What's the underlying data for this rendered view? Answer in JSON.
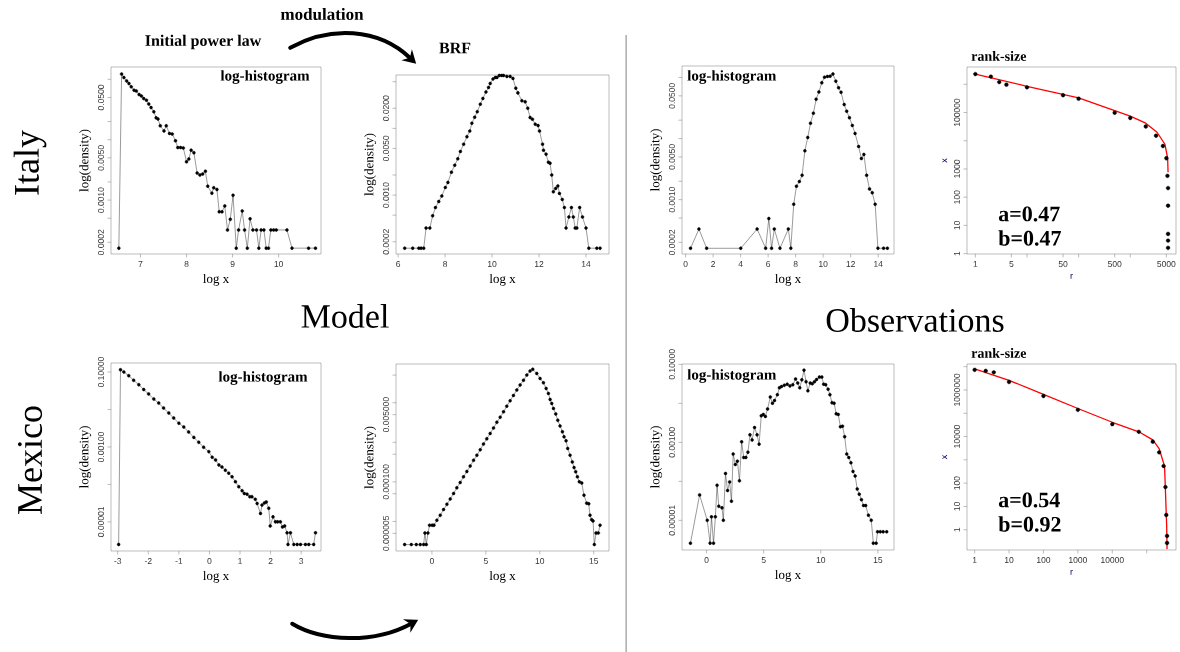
{
  "chart_data": [
    {
      "type": "line",
      "title": "Initial power law",
      "xlabel": "log x",
      "ylabel": "log(density)",
      "annotations": [
        "log-histogram",
        "modulation",
        "Italy",
        "Model"
      ],
      "color": "#000000",
      "marker": "circle",
      "log": "y",
      "xlim": [
        6.36,
        10.92
      ],
      "ylim": [
        0.000128,
        0.16
      ],
      "xticks": [
        7,
        8,
        9,
        10
      ],
      "yticks": [
        {
          "value": 0.0002,
          "label": "0.0002"
        },
        {
          "value": 0.0005,
          "label": null
        },
        {
          "value": 0.001,
          "label": "0.0010"
        },
        {
          "value": 0.002,
          "label": null
        },
        {
          "value": 0.005,
          "label": "0.0050"
        },
        {
          "value": 0.01,
          "label": null
        },
        {
          "value": 0.02,
          "label": null
        },
        {
          "value": 0.05,
          "label": "0.0500"
        },
        {
          "value": 0.1,
          "label": null
        }
      ],
      "x": [
        6.53,
        6.59,
        6.64,
        6.7,
        6.75,
        6.8,
        6.86,
        6.91,
        6.97,
        7.02,
        7.07,
        7.13,
        7.18,
        7.23,
        7.29,
        7.34,
        7.38,
        7.43,
        7.51,
        7.56,
        7.63,
        7.69,
        7.76,
        7.81,
        7.87,
        7.93,
        8.0,
        8.05,
        8.1,
        8.16,
        8.23,
        8.29,
        8.35,
        8.41,
        8.46,
        8.55,
        8.59,
        8.66,
        8.71,
        8.77,
        8.83,
        8.89,
        8.95,
        9.01,
        9.08,
        9.13,
        9.21,
        9.26,
        9.32,
        9.38,
        9.44,
        9.52,
        9.57,
        9.62,
        9.68,
        9.73,
        9.78,
        9.83,
        9.89,
        9.95,
        10.18,
        10.29,
        10.65,
        10.8
      ],
      "values": [
        0.00016,
        0.122,
        0.107,
        0.094,
        0.085,
        0.075,
        0.066,
        0.064,
        0.056,
        0.053,
        0.048,
        0.045,
        0.039,
        0.034,
        0.029,
        0.023,
        0.022,
        0.017,
        0.014,
        0.017,
        0.0127,
        0.0124,
        0.0096,
        0.0074,
        0.0074,
        0.0073,
        0.0043,
        0.0048,
        0.0067,
        0.0061,
        0.0028,
        0.0026,
        0.0027,
        0.003,
        0.0017,
        0.0013,
        0.0016,
        0.0015,
        0.00064,
        0.00064,
        0.0008,
        0.00032,
        0.00048,
        0.0012,
        0.00016,
        0.00032,
        0.00066,
        0.00032,
        0.00016,
        0.00049,
        0.00032,
        0.00032,
        0.00016,
        0.00032,
        0.00032,
        0.00016,
        0.00016,
        0.00032,
        0.00032,
        0.00032,
        0.00032,
        0.00016,
        0.00016,
        0.00016
      ]
    },
    {
      "type": "line",
      "title": "BRF",
      "xlabel": "log x",
      "ylabel": "log(density)",
      "color": "#000000",
      "marker": "circle",
      "log": "y",
      "xlim": [
        5.91,
        14.98
      ],
      "ylim": [
        0.000131,
        0.063
      ],
      "xticks": [
        6,
        8,
        10,
        12,
        14
      ],
      "yticks": [
        {
          "value": 0.0002,
          "label": "0.0002"
        },
        {
          "value": 0.0005,
          "label": null
        },
        {
          "value": 0.001,
          "label": "0.0010"
        },
        {
          "value": 0.002,
          "label": null
        },
        {
          "value": 0.005,
          "label": "0.0050"
        },
        {
          "value": 0.01,
          "label": null
        },
        {
          "value": 0.02,
          "label": "0.0200"
        },
        {
          "value": 0.05,
          "label": null
        }
      ],
      "x": [
        6.28,
        6.62,
        6.88,
        6.98,
        7.09,
        7.19,
        7.35,
        7.47,
        7.59,
        7.73,
        7.86,
        8.01,
        8.12,
        8.27,
        8.41,
        8.54,
        8.65,
        8.79,
        8.93,
        9.05,
        9.14,
        9.26,
        9.37,
        9.5,
        9.61,
        9.74,
        9.85,
        9.92,
        10.04,
        10.14,
        10.21,
        10.31,
        10.41,
        10.49,
        10.63,
        10.77,
        10.89,
        11.01,
        11.1,
        11.27,
        11.41,
        11.52,
        11.62,
        11.72,
        11.84,
        11.96,
        12.02,
        12.15,
        12.19,
        12.3,
        12.4,
        12.47,
        12.54,
        12.61,
        12.71,
        12.8,
        12.87,
        12.99,
        13.08,
        13.15,
        13.27,
        13.38,
        13.46,
        13.54,
        13.61,
        13.73,
        13.85,
        14.0,
        14.12,
        14.46,
        14.6
      ],
      "values": [
        0.00016,
        0.00016,
        0.00016,
        0.00016,
        0.00016,
        0.00032,
        0.00032,
        0.00049,
        0.00065,
        0.0008,
        0.00097,
        0.0013,
        0.00155,
        0.0022,
        0.0028,
        0.0035,
        0.0045,
        0.0058,
        0.0075,
        0.0091,
        0.0119,
        0.0147,
        0.0178,
        0.023,
        0.028,
        0.035,
        0.041,
        0.047,
        0.055,
        0.058,
        0.058,
        0.062,
        0.062,
        0.062,
        0.06,
        0.06,
        0.056,
        0.04,
        0.034,
        0.026,
        0.025,
        0.02,
        0.0145,
        0.0137,
        0.0115,
        0.011,
        0.0091,
        0.0058,
        0.0047,
        0.0041,
        0.0031,
        0.003,
        0.002,
        0.00112,
        0.00126,
        0.00137,
        0.00106,
        0.00086,
        0.00065,
        0.00032,
        0.00047,
        0.00065,
        0.00047,
        0.00032,
        0.00032,
        0.00065,
        0.00047,
        0.00032,
        0.00016,
        0.00016,
        0.00016
      ]
    },
    {
      "type": "line",
      "xlabel": "log x",
      "ylabel": "log(density)",
      "annotations": [
        "log-histogram",
        "Observations"
      ],
      "color": "#000000",
      "marker": "circle",
      "log": "y",
      "xlim": [
        -0.26,
        15.15
      ],
      "ylim": [
        0.000129,
        0.154
      ],
      "xticks": [
        0,
        2,
        4,
        6,
        8,
        10,
        12,
        14
      ],
      "yticks": [
        {
          "value": 0.0002,
          "label": "0.0002"
        },
        {
          "value": 0.0005,
          "label": null
        },
        {
          "value": 0.001,
          "label": "0.0010"
        },
        {
          "value": 0.002,
          "label": null
        },
        {
          "value": 0.005,
          "label": "0.0050"
        },
        {
          "value": 0.01,
          "label": null
        },
        {
          "value": 0.02,
          "label": null
        },
        {
          "value": 0.05,
          "label": "0.0500"
        },
        {
          "value": 0.1,
          "label": null
        }
      ],
      "x": [
        0.36,
        0.97,
        1.53,
        4.01,
        5.2,
        5.82,
        6.05,
        6.25,
        6.45,
        6.86,
        7.47,
        7.65,
        7.86,
        8.06,
        8.27,
        8.47,
        8.67,
        8.88,
        9.08,
        9.29,
        9.49,
        9.69,
        9.9,
        10.1,
        10.31,
        10.51,
        10.71,
        10.92,
        11.12,
        11.3,
        11.53,
        11.71,
        11.91,
        12.12,
        12.32,
        12.58,
        12.78,
        12.96,
        13.16,
        13.37,
        13.57,
        13.78,
        13.98,
        14.39,
        14.67
      ],
      "values": [
        0.00016,
        0.00033,
        0.00016,
        0.00016,
        0.00033,
        0.00016,
        0.00049,
        0.00016,
        0.00033,
        0.00016,
        0.00033,
        0.00016,
        0.00084,
        0.00166,
        0.00198,
        0.0025,
        0.0063,
        0.0104,
        0.0178,
        0.026,
        0.044,
        0.058,
        0.082,
        0.101,
        0.104,
        0.105,
        0.114,
        0.087,
        0.068,
        0.057,
        0.036,
        0.028,
        0.022,
        0.0164,
        0.0121,
        0.0074,
        0.0047,
        0.0055,
        0.0025,
        0.0015,
        0.0013,
        0.00084,
        0.00016,
        0.00016,
        0.00016
      ]
    },
    {
      "type": "scatter",
      "title": "rank-size",
      "xlabel": "r",
      "ylabel": "x",
      "annotations": [
        "a=0.47",
        "b=0.47"
      ],
      "marker": "circle",
      "log": "xy",
      "xlim": [
        0.69,
        7700
      ],
      "ylim": [
        0.97,
        4100000
      ],
      "xticks": [
        1,
        5,
        {
          "value": 10,
          "label": null
        },
        50,
        {
          "value": 100,
          "label": null
        },
        500,
        {
          "value": 1000,
          "label": null
        },
        5000
      ],
      "yticks": [
        1,
        10,
        100,
        1000,
        {
          "value": 10000,
          "label": null
        },
        100000,
        {
          "value": 1000000,
          "label": null
        }
      ],
      "series": [
        {
          "type": "scatter",
          "color": "#000000",
          "x": [
            1,
            2,
            2.9,
            4,
            10,
            50,
            100,
            500,
            1000,
            2000,
            3160,
            4300,
            5010,
            5250,
            5400,
            5400,
            5400,
            5400,
            5400
          ],
          "values": [
            2300000,
            1870000,
            1200000,
            970000,
            780000,
            410000,
            310000,
            98000,
            64000,
            32000,
            15000,
            6500,
            2400,
            570,
            210,
            50,
            5,
            2.9,
            1.6
          ]
        },
        {
          "type": "line",
          "color": "#ff0000",
          "marker": "none",
          "x": [
            1,
            10,
            100,
            1000,
            2000,
            3300,
            4700,
            5300,
            5400
          ],
          "values": [
            2300000,
            850000,
            330000,
            74000,
            42000,
            20000,
            7500,
            2400,
            760
          ]
        }
      ]
    },
    {
      "type": "line",
      "xlabel": "log x",
      "ylabel": "log(density)",
      "annotations": [
        "log-histogram",
        "Mexico"
      ],
      "color": "#000000",
      "marker": "circle",
      "log": "y",
      "xlim": [
        -3.22,
        3.65
      ],
      "ylim": [
        1.67e-06,
        0.174
      ],
      "xticks": [
        -3,
        -2,
        -1,
        0,
        1,
        2,
        3
      ],
      "yticks": [
        {
          "value": 1e-05,
          "label": "0.00001"
        },
        {
          "value": 0.0001,
          "label": null
        },
        {
          "value": 0.001,
          "label": "0.00100"
        },
        {
          "value": 0.01,
          "label": null
        },
        {
          "value": 0.1,
          "label": "0.10000"
        }
      ],
      "x": [
        -2.97,
        -2.91,
        -2.8,
        -2.64,
        -2.48,
        -2.31,
        -2.15,
        -1.99,
        -1.82,
        -1.66,
        -1.5,
        -1.33,
        -1.17,
        -1.0,
        -0.84,
        -0.68,
        -0.51,
        -0.35,
        -0.19,
        -0.02,
        0.09,
        0.2,
        0.31,
        0.41,
        0.52,
        0.63,
        0.74,
        0.85,
        0.96,
        1.07,
        1.14,
        1.23,
        1.32,
        1.39,
        1.5,
        1.56,
        1.67,
        1.72,
        1.8,
        1.86,
        1.94,
        1.99,
        2.08,
        2.16,
        2.23,
        2.32,
        2.39,
        2.46,
        2.54,
        2.57,
        2.65,
        2.76,
        2.87,
        2.98,
        3.14,
        3.25,
        3.41,
        3.47
      ],
      "values": [
        2.5e-06,
        0.115,
        0.1,
        0.08,
        0.06,
        0.046,
        0.034,
        0.026,
        0.0189,
        0.0148,
        0.0109,
        0.008,
        0.0059,
        0.0043,
        0.0034,
        0.0025,
        0.0018,
        0.00133,
        0.00098,
        0.00075,
        0.00053,
        0.00045,
        0.00033,
        0.00029,
        0.00024,
        0.0002,
        0.00016,
        0.000118,
        8.7e-05,
        6.8e-05,
        5.7e-05,
        5.5e-05,
        4.7e-05,
        4.7e-05,
        4e-05,
        3.1e-05,
        1.67e-05,
        2.8e-05,
        3.2e-05,
        3.4e-05,
        2.3e-05,
        7.8e-06,
        1.36e-05,
        1e-05,
        1e-05,
        1e-05,
        7.3e-06,
        7.8e-06,
        5.1e-06,
        2.5e-06,
        5.1e-06,
        2.5e-06,
        2.5e-06,
        2.5e-06,
        2.5e-06,
        2.5e-06,
        2.5e-06,
        5.1e-06
      ]
    },
    {
      "type": "line",
      "xlabel": "log x",
      "ylabel": "log(density)",
      "color": "#000000",
      "marker": "circle",
      "log": "y",
      "xlim": [
        -3.33,
        16.42
      ],
      "ylim": [
        1.79e-06,
        0.0953
      ],
      "xticks": [
        0,
        5,
        10,
        15
      ],
      "yticks": [
        {
          "value": 5e-06,
          "label": "0.000005"
        },
        {
          "value": 1e-05,
          "label": null
        },
        {
          "value": 5e-05,
          "label": null
        },
        {
          "value": 0.0001,
          "label": "0.000100"
        },
        {
          "value": 0.0005,
          "label": null
        },
        {
          "value": 0.001,
          "label": null
        },
        {
          "value": 0.005,
          "label": "0.005000"
        },
        {
          "value": 0.01,
          "label": null
        },
        {
          "value": 0.05,
          "label": null
        }
      ],
      "x": [
        -2.53,
        -1.91,
        -1.45,
        -1.08,
        -0.77,
        -0.65,
        -0.52,
        -0.37,
        -0.22,
        0.03,
        0.19,
        0.46,
        0.77,
        1.08,
        1.39,
        1.7,
        2.01,
        2.31,
        2.62,
        2.93,
        3.24,
        3.55,
        3.86,
        4.17,
        4.48,
        4.78,
        5.09,
        5.4,
        5.71,
        6.02,
        6.33,
        6.64,
        6.94,
        7.25,
        7.56,
        7.87,
        8.18,
        8.49,
        8.8,
        9.1,
        9.35,
        9.72,
        10.03,
        10.34,
        10.59,
        10.8,
        10.96,
        11.11,
        11.27,
        11.48,
        11.67,
        11.88,
        12.1,
        12.25,
        12.44,
        12.59,
        12.81,
        13.02,
        13.18,
        13.33,
        13.49,
        13.67,
        13.89,
        14.1,
        14.35,
        14.54,
        14.66,
        14.81,
        14.94,
        15.06,
        15.22,
        15.43,
        15.59
      ],
      "values": [
        2.6e-06,
        2.6e-06,
        2.6e-06,
        2.6e-06,
        2.6e-06,
        5.1e-06,
        2.6e-06,
        5.1e-06,
        8e-06,
        8e-06,
        8e-06,
        1.07e-05,
        1.43e-05,
        2e-05,
        2.7e-05,
        3.7e-05,
        5.1e-05,
        7.1e-05,
        9.6e-05,
        0.000134,
        0.000183,
        0.00025,
        0.00035,
        0.00047,
        0.00065,
        0.0009,
        0.00123,
        0.00167,
        0.0023,
        0.0032,
        0.0043,
        0.0059,
        0.0082,
        0.0112,
        0.0153,
        0.021,
        0.028,
        0.037,
        0.05,
        0.063,
        0.07,
        0.055,
        0.041,
        0.032,
        0.023,
        0.0172,
        0.0121,
        0.0096,
        0.0072,
        0.0052,
        0.0036,
        0.0026,
        0.00185,
        0.00138,
        0.00109,
        0.0007,
        0.00047,
        0.00032,
        0.00023,
        0.00018,
        0.000134,
        0.0001,
        9.4e-05,
        4.6e-05,
        2.9e-05,
        2.8e-05,
        1.43e-05,
        1.11e-05,
        1.03e-05,
        2.6e-06,
        5.1e-06,
        5.1e-06,
        8e-06
      ]
    },
    {
      "type": "line",
      "xlabel": "log x",
      "ylabel": "log(density)",
      "annotations": [
        "log-histogram"
      ],
      "color": "#000000",
      "marker": "circle",
      "log": "y",
      "xlim": [
        -2.15,
        16.41
      ],
      "ylim": [
        1.74e-06,
        0.102
      ],
      "xticks": [
        0,
        5,
        10,
        15
      ],
      "yticks": [
        {
          "value": 1e-05,
          "label": "0.00001"
        },
        {
          "value": 0.0001,
          "label": null
        },
        {
          "value": 0.001,
          "label": "0.00100"
        },
        {
          "value": 0.01,
          "label": null
        },
        {
          "value": 0.1,
          "label": "0.10000"
        }
      ],
      "x": [
        -1.41,
        -0.61,
        0.06,
        0.31,
        0.43,
        0.61,
        0.77,
        0.92,
        1.07,
        1.35,
        1.47,
        1.66,
        1.84,
        2.02,
        2.18,
        2.33,
        2.52,
        2.7,
        2.88,
        3.07,
        3.25,
        3.44,
        3.62,
        3.8,
        3.99,
        4.2,
        4.42,
        4.6,
        4.79,
        4.97,
        5.15,
        5.34,
        5.58,
        5.77,
        5.95,
        6.2,
        6.38,
        6.56,
        6.81,
        7.06,
        7.3,
        7.55,
        7.79,
        7.98,
        8.16,
        8.34,
        8.53,
        8.71,
        8.87,
        9.08,
        9.26,
        9.45,
        9.63,
        9.88,
        10.09,
        10.25,
        10.43,
        10.64,
        10.8,
        10.98,
        11.17,
        11.35,
        11.53,
        11.72,
        11.9,
        12.09,
        12.27,
        12.45,
        12.64,
        12.82,
        13.01,
        13.19,
        13.37,
        13.56,
        13.74,
        13.93,
        14.17,
        14.42,
        14.6,
        14.85,
        14.97,
        15.21,
        15.46,
        15.77
      ],
      "values": [
        2.6e-06,
        4.5e-05,
        1e-05,
        2.6e-06,
        1.23e-05,
        2.6e-06,
        1.23e-05,
        7.9e-05,
        2.3e-05,
        2.1e-05,
        1e-05,
        0.00016,
        5.8e-05,
        9.7e-05,
        3.1e-05,
        0.0005,
        0.00027,
        0.00033,
        0.000103,
        0.00103,
        0.00041,
        0.00041,
        0.00056,
        0.00156,
        0.00115,
        0.0024,
        0.00156,
        0.0009,
        0.0048,
        0.0052,
        0.0046,
        0.0072,
        0.0145,
        0.01,
        0.0118,
        0.0167,
        0.025,
        0.027,
        0.029,
        0.031,
        0.028,
        0.03,
        0.042,
        0.033,
        0.025,
        0.04,
        0.071,
        0.036,
        0.021,
        0.033,
        0.032,
        0.036,
        0.041,
        0.047,
        0.047,
        0.031,
        0.03,
        0.023,
        0.0167,
        0.0104,
        0.01,
        0.0054,
        0.0052,
        0.0025,
        0.0026,
        0.0014,
        0.0005,
        0.00041,
        0.0003,
        0.00018,
        0.000137,
        6.4e-05,
        4.7e-05,
        3.4e-05,
        2.4e-05,
        2.4e-05,
        1.36e-05,
        1e-05,
        2.6e-06,
        2.6e-06,
        5.1e-06,
        5.1e-06,
        5.1e-06,
        5.1e-06
      ]
    },
    {
      "type": "scatter",
      "title": "rank-size",
      "xlabel": "r",
      "ylabel": "x",
      "annotations": [
        "a=0.54",
        "b=0.92"
      ],
      "marker": "circle",
      "log": "xy",
      "xlim": [
        0.6,
        710000
      ],
      "ylim": [
        0.135,
        13000000
      ],
      "xticks": [
        1,
        10,
        100,
        1000,
        10000,
        {
          "value": 100000,
          "label": null
        }
      ],
      "yticks": [
        1,
        10,
        100,
        {
          "value": 1000,
          "label": null
        },
        10000,
        {
          "value": 100000,
          "label": null
        },
        1000000,
        {
          "value": 10000000,
          "label": null
        }
      ],
      "series": [
        {
          "type": "scatter",
          "color": "#000000",
          "x": [
            1,
            2.1,
            3.6,
            10,
            100,
            1000,
            10000,
            59000,
            150000,
            230000,
            310000,
            350000,
            370000,
            390000,
            390000
          ],
          "values": [
            7300000,
            6600000,
            5700000,
            2200000,
            550000,
            140000,
            34000,
            16000,
            6000,
            2100,
            540,
            68,
            4.3,
            0.54,
            0.27
          ]
        },
        {
          "type": "line",
          "color": "#ff0000",
          "marker": "none",
          "x": [
            1,
            10,
            100,
            1000,
            10000,
            59000,
            150000,
            230000,
            330000,
            350000,
            380000,
            390000
          ],
          "values": [
            8100000,
            2600000,
            650000,
            160000,
            41000,
            16000,
            7200,
            3000,
            540,
            48,
            1.5,
            0.15
          ]
        }
      ]
    }
  ]
}
